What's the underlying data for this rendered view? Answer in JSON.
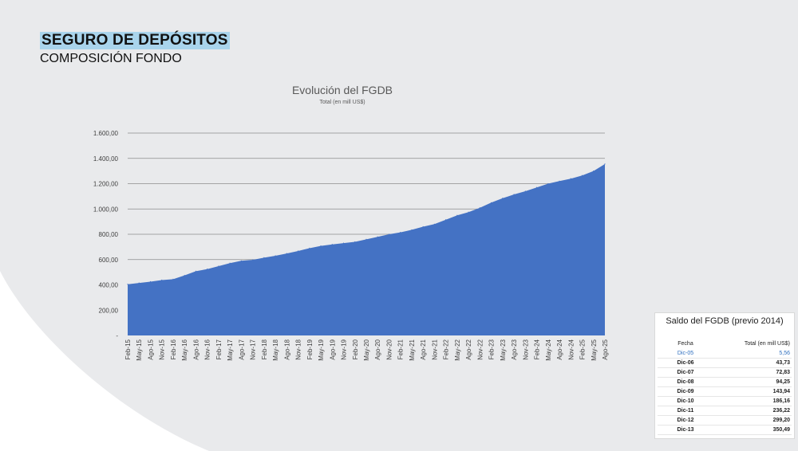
{
  "header": {
    "title": "SEGURO DE DEPÓSITOS",
    "subtitle": "COMPOSICIÓN FONDO"
  },
  "colors": {
    "panel": "#e9eaec",
    "area": "#4472c4",
    "title_highlight": "#a9d4ec"
  },
  "chart_data": {
    "type": "area",
    "title": "Evolución del FGDB",
    "subtitle": "Total (en mill US$)",
    "xlabel": "",
    "ylabel": "",
    "ylim": [
      0,
      1600
    ],
    "ytick_labels": [
      "-",
      "200,00",
      "400,00",
      "600,00",
      "800,00",
      "1.000,00",
      "1.200,00",
      "1.400,00",
      "1.600,00"
    ],
    "grid": true,
    "categories": [
      "Feb-15",
      "May-15",
      "Ago-15",
      "Nov-15",
      "Feb-16",
      "May-16",
      "Ago-16",
      "Nov-16",
      "Feb-17",
      "May-17",
      "Ago-17",
      "Nov-17",
      "Feb-18",
      "May-18",
      "Ago-18",
      "Nov-18",
      "Feb-19",
      "May-19",
      "Ago-19",
      "Nov-19",
      "Feb-20",
      "May-20",
      "Ago-20",
      "Nov-20",
      "Feb-21",
      "May-21",
      "Ago-21",
      "Nov-21",
      "Feb-22",
      "May-22",
      "Ago-22",
      "Nov-22",
      "Feb-23",
      "May-23",
      "Ago-23",
      "Nov-23",
      "Feb-24",
      "May-24",
      "Ago-24",
      "Nov-24",
      "Feb-25",
      "May-25",
      "Ago-25"
    ],
    "series": [
      {
        "values": [
          405,
          415,
          425,
          438,
          445,
          475,
          508,
          525,
          548,
          572,
          590,
          598,
          615,
          630,
          648,
          668,
          690,
          708,
          720,
          730,
          740,
          760,
          780,
          800,
          815,
          835,
          860,
          880,
          915,
          950,
          975,
          1010,
          1050,
          1085,
          1115,
          1140,
          1170,
          1200,
          1220,
          1240,
          1265,
          1300,
          1355
        ]
      }
    ]
  },
  "table": {
    "title": "Saldo del FGDB (previo 2014)",
    "headers": [
      "Fecha",
      "Total (en mill US$)"
    ],
    "rows": [
      {
        "fecha": "Dic-05",
        "total": "5,56"
      },
      {
        "fecha": "Dic-06",
        "total": "43,73"
      },
      {
        "fecha": "Dic-07",
        "total": "72,83"
      },
      {
        "fecha": "Dic-08",
        "total": "94,25"
      },
      {
        "fecha": "Dic-09",
        "total": "143,94"
      },
      {
        "fecha": "Dic-10",
        "total": "186,16"
      },
      {
        "fecha": "Dic-11",
        "total": "236,22"
      },
      {
        "fecha": "Dic-12",
        "total": "299,20"
      },
      {
        "fecha": "Dic-13",
        "total": "350,49"
      }
    ]
  }
}
